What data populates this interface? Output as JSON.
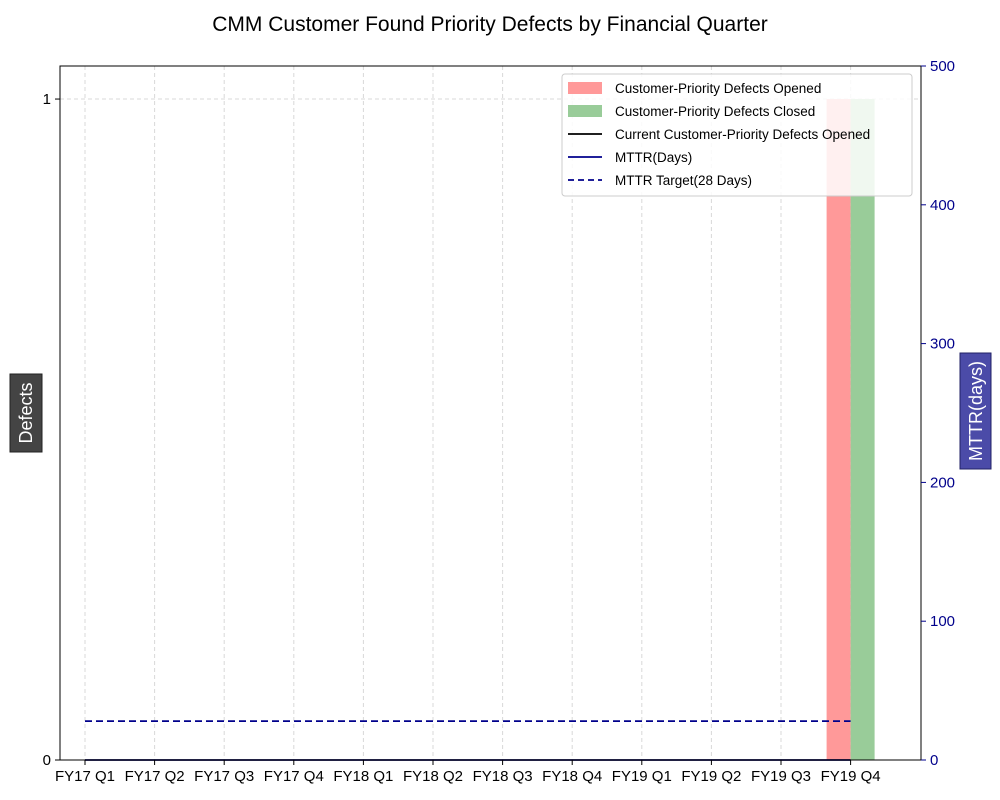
{
  "chart_data": {
    "type": "bar",
    "title": "CMM Customer Found Priority Defects by Financial Quarter",
    "categories": [
      "FY17 Q1",
      "FY17 Q2",
      "FY17 Q3",
      "FY17 Q4",
      "FY18 Q1",
      "FY18 Q2",
      "FY18 Q3",
      "FY18 Q4",
      "FY19 Q1",
      "FY19 Q2",
      "FY19 Q3",
      "FY19 Q4"
    ],
    "series": [
      {
        "name": "Customer-Priority Defects Opened",
        "kind": "bar",
        "axis": "left",
        "color": "#ff9999",
        "values": [
          0,
          0,
          0,
          0,
          0,
          0,
          0,
          0,
          0,
          0,
          0,
          1
        ]
      },
      {
        "name": "Customer-Priority Defects Closed",
        "kind": "bar",
        "axis": "left",
        "color": "#99cc99",
        "values": [
          0,
          0,
          0,
          0,
          0,
          0,
          0,
          0,
          0,
          0,
          0,
          1
        ]
      },
      {
        "name": "Current Customer-Priority Defects Opened",
        "kind": "line",
        "axis": "left",
        "color": "#000000",
        "values": [
          0,
          0,
          0,
          0,
          0,
          0,
          0,
          0,
          0,
          0,
          0,
          0
        ]
      },
      {
        "name": "MTTR(Days)",
        "kind": "line",
        "axis": "right",
        "color": "#00008b",
        "values": [
          0,
          0,
          0,
          0,
          0,
          0,
          0,
          0,
          0,
          0,
          0,
          0
        ]
      },
      {
        "name": "MTTR Target(28 Days)",
        "kind": "dashed-line",
        "axis": "right",
        "color": "#00008b",
        "values": [
          28,
          28,
          28,
          28,
          28,
          28,
          28,
          28,
          28,
          28,
          28,
          28
        ]
      }
    ],
    "y_left": {
      "label": "Defects",
      "ticks": [
        0,
        1
      ],
      "range": [
        0,
        1.05
      ]
    },
    "y_right": {
      "label": "MTTR(days)",
      "ticks": [
        0,
        100,
        200,
        300,
        400,
        500
      ],
      "range": [
        0,
        500
      ],
      "color": "#00008b"
    },
    "ylabel_box_left": "#444444",
    "ylabel_box_right": "#4b4ba8",
    "grid": true,
    "legend_position": "top-right"
  }
}
